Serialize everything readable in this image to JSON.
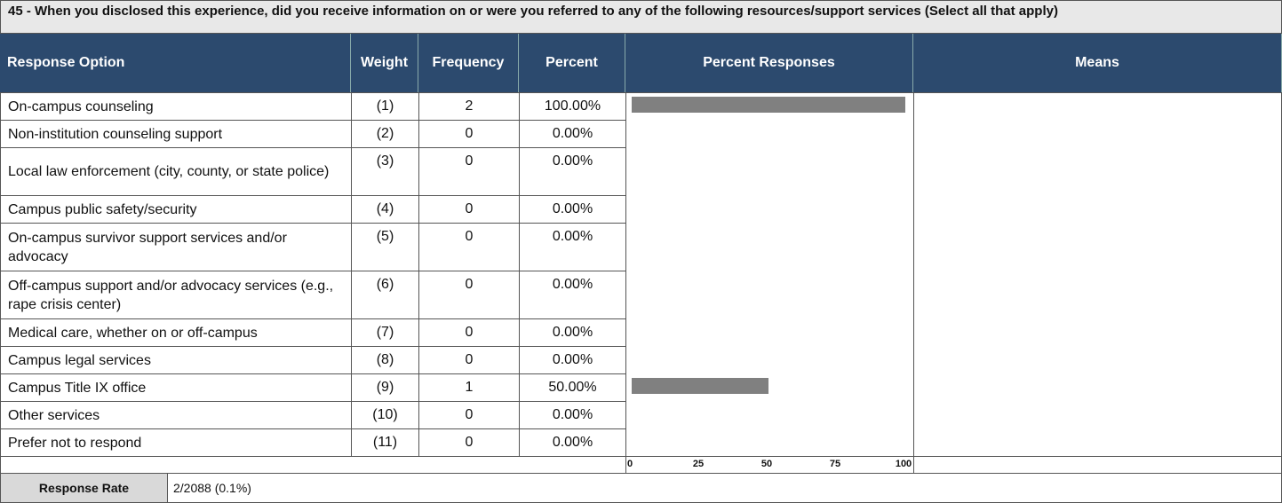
{
  "title": "45 - When you disclosed this experience, did you receive information on or were you referred to any of the following resources/support services (Select all that apply)",
  "columns": [
    "Response Option",
    "Weight",
    "Frequency",
    "Percent",
    "Percent Responses",
    "Means"
  ],
  "rows": [
    {
      "option": "On-campus counseling",
      "weight": "(1)",
      "frequency": 2,
      "percent": {
        "value": 100,
        "label": "100.00%"
      }
    },
    {
      "option": "Non-institution counseling support",
      "weight": "(2)",
      "frequency": 0,
      "percent": {
        "value": 0,
        "label": "0.00%"
      }
    },
    {
      "option": "Local law enforcement (city, county, or state police)",
      "weight": "(3)",
      "frequency": 0,
      "percent": {
        "value": 0,
        "label": "0.00%"
      }
    },
    {
      "option": "Campus public safety/security",
      "weight": "(4)",
      "frequency": 0,
      "percent": {
        "value": 0,
        "label": "0.00%"
      }
    },
    {
      "option": "On-campus survivor support services and/or advocacy",
      "weight": "(5)",
      "frequency": 0,
      "percent": {
        "value": 0,
        "label": "0.00%"
      }
    },
    {
      "option": "Off-campus support and/or advocacy services (e.g., rape crisis center)",
      "weight": "(6)",
      "frequency": 0,
      "percent": {
        "value": 0,
        "label": "0.00%"
      }
    },
    {
      "option": "Medical care, whether on or off-campus",
      "weight": "(7)",
      "frequency": 0,
      "percent": {
        "value": 0,
        "label": "0.00%"
      }
    },
    {
      "option": "Campus legal services",
      "weight": "(8)",
      "frequency": 0,
      "percent": {
        "value": 0,
        "label": "0.00%"
      }
    },
    {
      "option": "Campus Title IX office",
      "weight": "(9)",
      "frequency": 1,
      "percent": {
        "value": 50,
        "label": "50.00%"
      }
    },
    {
      "option": "Other services",
      "weight": "(10)",
      "frequency": 0,
      "percent": {
        "value": 0,
        "label": "0.00%"
      }
    },
    {
      "option": "Prefer not to respond",
      "weight": "(11)",
      "frequency": 0,
      "percent": {
        "value": 0,
        "label": "0.00%"
      }
    }
  ],
  "scale": {
    "xlim": [
      0,
      100
    ],
    "xticks": [
      0,
      25,
      50,
      75,
      100
    ]
  },
  "bar_color": "#808080",
  "response_rate": {
    "label": "Response Rate",
    "value": "2/2088 (0.1%)"
  }
}
